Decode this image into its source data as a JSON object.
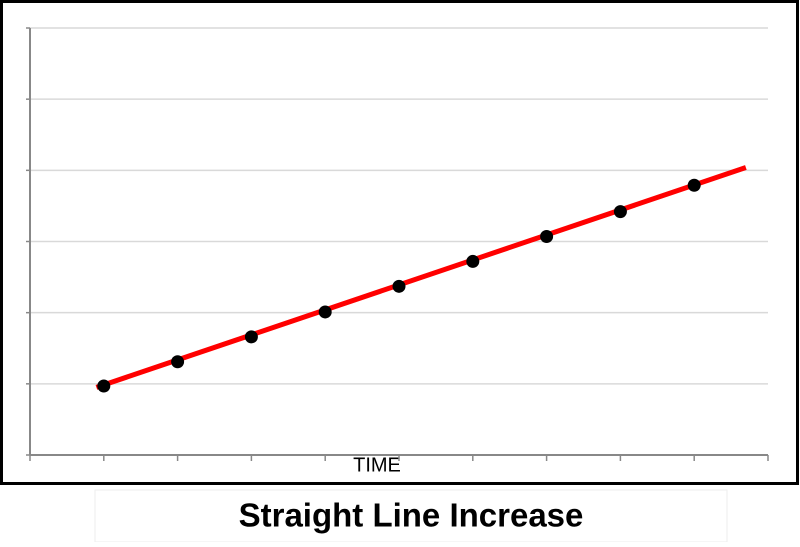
{
  "chart_data": {
    "type": "scatter",
    "title": "Straight Line Increase",
    "x_label": "TIME",
    "x": [
      1,
      2,
      3,
      4,
      5,
      6,
      7,
      8,
      9
    ],
    "values": [
      0.97,
      1.31,
      1.66,
      2.01,
      2.37,
      2.72,
      3.07,
      3.42,
      3.79
    ],
    "color": "#000000",
    "trend_line": {
      "x": [
        0.9,
        9.7
      ],
      "values": [
        0.95,
        4.04
      ],
      "color": "#ff0000"
    },
    "xlim": [
      0,
      10
    ],
    "xticks": [
      0,
      1,
      2,
      3,
      4,
      5,
      6,
      7,
      8,
      9,
      10
    ],
    "ylim": [
      0,
      6
    ],
    "yticks": [
      0,
      1,
      2,
      3,
      4,
      5,
      6
    ],
    "grid": true
  }
}
